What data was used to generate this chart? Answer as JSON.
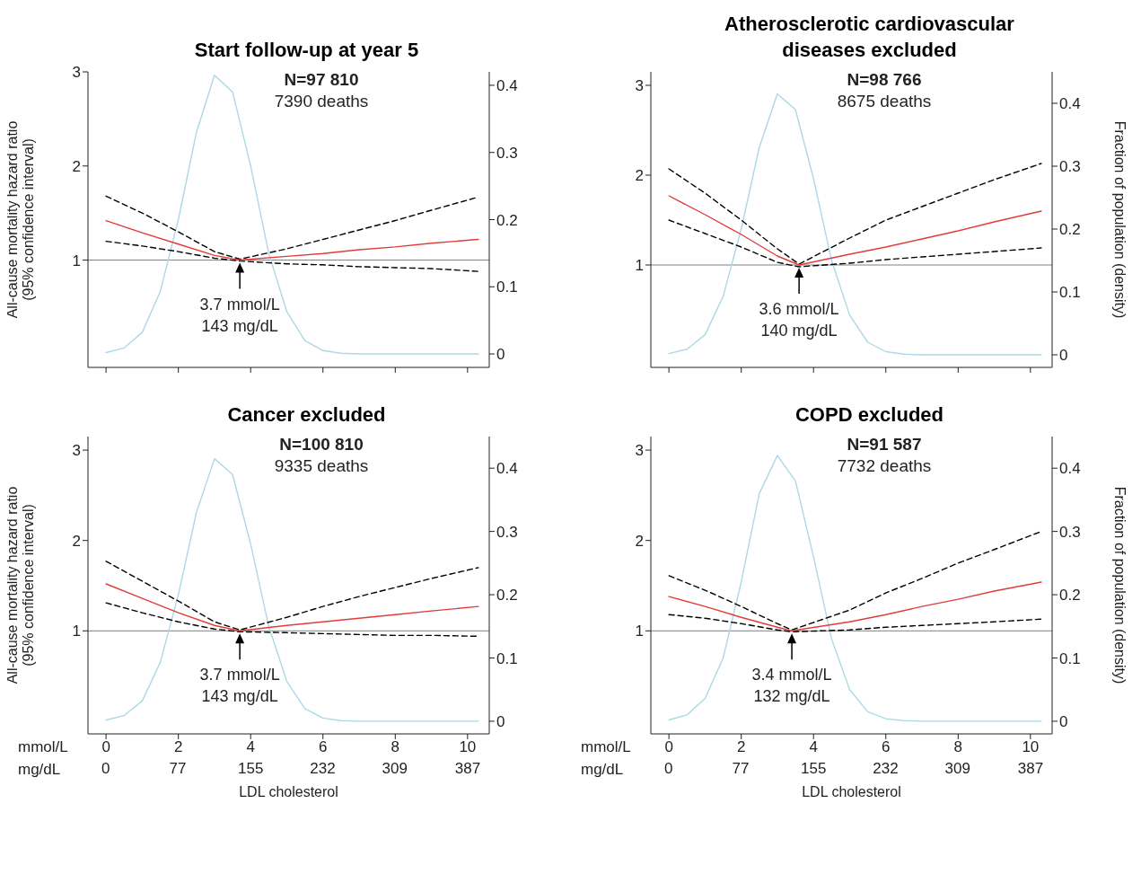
{
  "chart_data": [
    {
      "type": "line",
      "title": "Start follow-up at year 5",
      "ylabel": "All-cause mortality hazard ratio\n(95% confidence interval)",
      "xlim": [
        -0.5,
        10.6
      ],
      "xticks": [
        0,
        2,
        4,
        6,
        8,
        10
      ],
      "ylim": [
        -0.14,
        3
      ],
      "yticks": [
        1,
        2,
        3
      ],
      "y2lim": [
        -0.02,
        0.42
      ],
      "y2ticks": [
        0,
        0.1,
        0.2,
        0.3,
        0.4
      ],
      "tick_labels": "y",
      "marker": "none",
      "ref_lines": [
        {
          "axis": "y",
          "value": 1,
          "color": "#808080"
        }
      ],
      "annotations": [
        "N=97 810",
        "7390 deaths",
        {
          "text": "3.7 mmol/L\n143 mg/dL",
          "x": 3.7,
          "y": 1
        }
      ],
      "series": [
        {
          "axis": "y2",
          "color": "#add8e6",
          "line_style": "solid",
          "x": [
            0,
            0.5,
            1,
            1.5,
            2,
            2.5,
            3,
            3.5,
            4,
            4.5,
            5,
            5.5,
            6,
            6.5,
            7,
            8,
            9,
            10.3
          ],
          "values": [
            0.002,
            0.009,
            0.032,
            0.093,
            0.2,
            0.33,
            0.415,
            0.39,
            0.28,
            0.15,
            0.063,
            0.02,
            0.005,
            0.001,
            0,
            0,
            0,
            0
          ]
        },
        {
          "color": "#000000",
          "line_style": "dashed",
          "x": [
            0,
            1,
            2,
            3,
            3.7,
            5,
            6,
            7,
            8,
            9,
            10.3
          ],
          "values": [
            1.68,
            1.5,
            1.3,
            1.09,
            1.01,
            1.12,
            1.22,
            1.32,
            1.42,
            1.53,
            1.67
          ]
        },
        {
          "color": "#000000",
          "line_style": "dashed",
          "x": [
            0,
            1,
            2,
            3,
            3.7,
            5,
            6,
            7,
            8,
            9,
            10.3
          ],
          "values": [
            1.2,
            1.15,
            1.09,
            1.02,
            0.99,
            0.96,
            0.95,
            0.93,
            0.92,
            0.91,
            0.88
          ]
        },
        {
          "color": "#e03c3c",
          "line_style": "solid",
          "x": [
            0,
            1,
            2,
            3,
            3.7,
            5,
            6,
            7,
            8,
            9,
            10.3
          ],
          "values": [
            1.42,
            1.29,
            1.17,
            1.05,
            1.0,
            1.04,
            1.07,
            1.11,
            1.14,
            1.18,
            1.22
          ]
        }
      ]
    },
    {
      "type": "line",
      "title": "Atherosclerotic cardiovascular diseases excluded",
      "y2label": "Fraction of population (density)",
      "xlim": [
        -0.5,
        10.6
      ],
      "xticks": [
        0,
        2,
        4,
        6,
        8,
        10
      ],
      "ylim": [
        -0.14,
        3.15
      ],
      "yticks": [
        1,
        2,
        3
      ],
      "y2lim": [
        -0.02,
        0.45
      ],
      "y2ticks": [
        0,
        0.1,
        0.2,
        0.3,
        0.4
      ],
      "tick_labels": "y",
      "marker": "none",
      "ref_lines": [
        {
          "axis": "y",
          "value": 1,
          "color": "#808080"
        }
      ],
      "annotations": [
        "N=98 766",
        "8675 deaths",
        {
          "text": "3.6 mmol/L\n140 mg/dL",
          "x": 3.6,
          "y": 1
        }
      ],
      "series": [
        {
          "axis": "y2",
          "color": "#add8e6",
          "line_style": "solid",
          "x": [
            0,
            0.5,
            1,
            1.5,
            2,
            2.5,
            3,
            3.5,
            4,
            4.5,
            5,
            5.5,
            6,
            6.5,
            7,
            8,
            9,
            10.3
          ],
          "values": [
            0.002,
            0.009,
            0.032,
            0.093,
            0.2,
            0.33,
            0.415,
            0.39,
            0.28,
            0.15,
            0.063,
            0.02,
            0.005,
            0.001,
            0,
            0,
            0,
            0
          ]
        },
        {
          "color": "#000000",
          "line_style": "dashed",
          "x": [
            0,
            1,
            2,
            3,
            3.6,
            5,
            6,
            7,
            8,
            9,
            10.3
          ],
          "values": [
            2.07,
            1.8,
            1.5,
            1.18,
            1.01,
            1.3,
            1.5,
            1.65,
            1.8,
            1.95,
            2.13
          ]
        },
        {
          "color": "#000000",
          "line_style": "dashed",
          "x": [
            0,
            1,
            2,
            3,
            3.6,
            5,
            6,
            7,
            8,
            9,
            10.3
          ],
          "values": [
            1.5,
            1.35,
            1.2,
            1.03,
            0.98,
            1.02,
            1.06,
            1.09,
            1.12,
            1.15,
            1.19
          ]
        },
        {
          "color": "#e03c3c",
          "line_style": "solid",
          "x": [
            0,
            1,
            2,
            3,
            3.6,
            5,
            6,
            7,
            8,
            9,
            10.3
          ],
          "values": [
            1.77,
            1.56,
            1.34,
            1.1,
            1.0,
            1.12,
            1.2,
            1.29,
            1.38,
            1.48,
            1.6
          ]
        }
      ]
    },
    {
      "type": "line",
      "title": "Cancer excluded",
      "ylabel": "All-cause mortality hazard ratio\n(95% confidence interval)",
      "xlabel": "LDL cholesterol",
      "xlim": [
        -0.5,
        10.6
      ],
      "xticks": [
        0,
        2,
        4,
        6,
        8,
        10
      ],
      "x2lim": [
        -19,
        410
      ],
      "x2ticks": [
        0,
        77,
        155,
        232,
        309,
        387
      ],
      "ylim": [
        -0.14,
        3.15
      ],
      "yticks": [
        1,
        2,
        3
      ],
      "y2lim": [
        -0.02,
        0.45
      ],
      "y2ticks": [
        0,
        0.1,
        0.2,
        0.3,
        0.4
      ],
      "marker": "none",
      "ref_lines": [
        {
          "axis": "y",
          "value": 1,
          "color": "#808080"
        }
      ],
      "annotations": [
        "N=100 810",
        "9335 deaths",
        {
          "text": "3.7 mmol/L\n143 mg/dL",
          "x": 3.7,
          "y": 1
        },
        "mmol/L",
        "mg/dL"
      ],
      "series": [
        {
          "axis": "y2",
          "color": "#add8e6",
          "line_style": "solid",
          "x": [
            0,
            0.5,
            1,
            1.5,
            2,
            2.5,
            3,
            3.5,
            4,
            4.5,
            5,
            5.5,
            6,
            6.5,
            7,
            8,
            9,
            10.3
          ],
          "values": [
            0.002,
            0.009,
            0.032,
            0.093,
            0.2,
            0.33,
            0.415,
            0.39,
            0.28,
            0.15,
            0.063,
            0.02,
            0.005,
            0.001,
            0,
            0,
            0,
            0
          ]
        },
        {
          "color": "#000000",
          "line_style": "dashed",
          "x": [
            0,
            1,
            2,
            3,
            3.7,
            5,
            6,
            7,
            8,
            9,
            10.3
          ],
          "values": [
            1.77,
            1.55,
            1.33,
            1.1,
            1.01,
            1.15,
            1.27,
            1.38,
            1.48,
            1.58,
            1.7
          ]
        },
        {
          "color": "#000000",
          "line_style": "dashed",
          "x": [
            0,
            1,
            2,
            3,
            3.7,
            5,
            6,
            7,
            8,
            9,
            10.3
          ],
          "values": [
            1.31,
            1.2,
            1.1,
            1.02,
            0.99,
            0.98,
            0.97,
            0.96,
            0.95,
            0.95,
            0.94
          ]
        },
        {
          "color": "#e03c3c",
          "line_style": "solid",
          "x": [
            0,
            1,
            2,
            3,
            3.7,
            5,
            6,
            7,
            8,
            9,
            10.3
          ],
          "values": [
            1.52,
            1.36,
            1.2,
            1.06,
            1.0,
            1.06,
            1.1,
            1.14,
            1.18,
            1.22,
            1.27
          ]
        }
      ]
    },
    {
      "type": "line",
      "title": "COPD excluded",
      "y2label": "Fraction of population (density)",
      "xlabel": "LDL cholesterol",
      "xlim": [
        -0.5,
        10.6
      ],
      "xticks": [
        0,
        2,
        4,
        6,
        8,
        10
      ],
      "x2lim": [
        -19,
        410
      ],
      "x2ticks": [
        0,
        77,
        155,
        232,
        309,
        387
      ],
      "ylim": [
        -0.14,
        3.15
      ],
      "yticks": [
        1,
        2,
        3
      ],
      "y2lim": [
        -0.02,
        0.45
      ],
      "y2ticks": [
        0,
        0.1,
        0.2,
        0.3,
        0.4
      ],
      "marker": "none",
      "ref_lines": [
        {
          "axis": "y",
          "value": 1,
          "color": "#808080"
        }
      ],
      "annotations": [
        "N=91 587",
        "7732 deaths",
        {
          "text": "3.4 mmol/L\n132 mg/dL",
          "x": 3.4,
          "y": 1
        },
        "mmol/L",
        "mg/dL"
      ],
      "series": [
        {
          "axis": "y2",
          "color": "#add8e6",
          "line_style": "solid",
          "x": [
            0,
            0.5,
            1,
            1.5,
            2,
            2.5,
            3,
            3.5,
            4,
            4.5,
            5,
            5.5,
            6,
            6.5,
            7,
            8,
            9,
            10.3
          ],
          "values": [
            0.002,
            0.01,
            0.036,
            0.1,
            0.22,
            0.36,
            0.42,
            0.38,
            0.26,
            0.13,
            0.05,
            0.015,
            0.004,
            0.001,
            0,
            0,
            0,
            0
          ]
        },
        {
          "color": "#000000",
          "line_style": "dashed",
          "x": [
            0,
            1,
            2,
            3,
            3.4,
            5,
            6,
            7,
            8,
            9,
            10.3
          ],
          "values": [
            1.61,
            1.45,
            1.27,
            1.08,
            1.01,
            1.23,
            1.42,
            1.58,
            1.75,
            1.9,
            2.1
          ]
        },
        {
          "color": "#000000",
          "line_style": "dashed",
          "x": [
            0,
            1,
            2,
            3,
            3.4,
            5,
            6,
            7,
            8,
            9,
            10.3
          ],
          "values": [
            1.18,
            1.14,
            1.08,
            1.01,
            0.99,
            1.01,
            1.04,
            1.06,
            1.08,
            1.1,
            1.13
          ]
        },
        {
          "color": "#e03c3c",
          "line_style": "solid",
          "x": [
            0,
            1,
            2,
            3,
            3.4,
            5,
            6,
            7,
            8,
            9,
            10.3
          ],
          "values": [
            1.38,
            1.27,
            1.15,
            1.04,
            1.0,
            1.1,
            1.18,
            1.27,
            1.35,
            1.44,
            1.54
          ]
        }
      ]
    }
  ]
}
